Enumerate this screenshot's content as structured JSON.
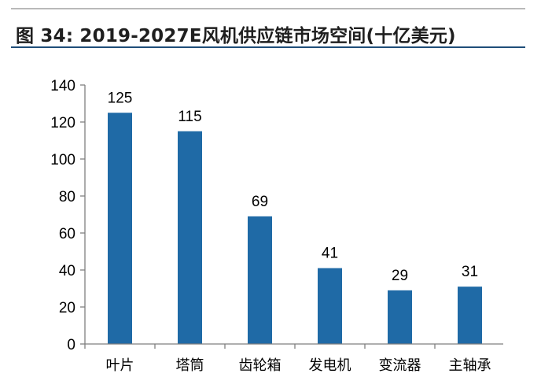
{
  "header": {
    "title": "图 34: 2019-2027E风机供应链市场空间(十亿美元)"
  },
  "colors": {
    "bar": "#1f6aa6",
    "axis": "#7f7f7f",
    "title_rule": "#1f4e79"
  },
  "chart_data": {
    "type": "bar",
    "title": "图 34: 2019-2027E风机供应链市场空间(十亿美元)",
    "xlabel": "",
    "ylabel": "",
    "categories": [
      "叶片",
      "塔筒",
      "齿轮箱",
      "发电机",
      "变流器",
      "主轴承"
    ],
    "values": [
      125,
      115,
      69,
      41,
      29,
      31
    ],
    "data_labels": [
      "125",
      "115",
      "69",
      "41",
      "29",
      "31"
    ],
    "ylim": [
      0,
      140
    ],
    "yticks": [
      0,
      20,
      40,
      60,
      80,
      100,
      120,
      140
    ],
    "grid": false,
    "legend": "none"
  }
}
